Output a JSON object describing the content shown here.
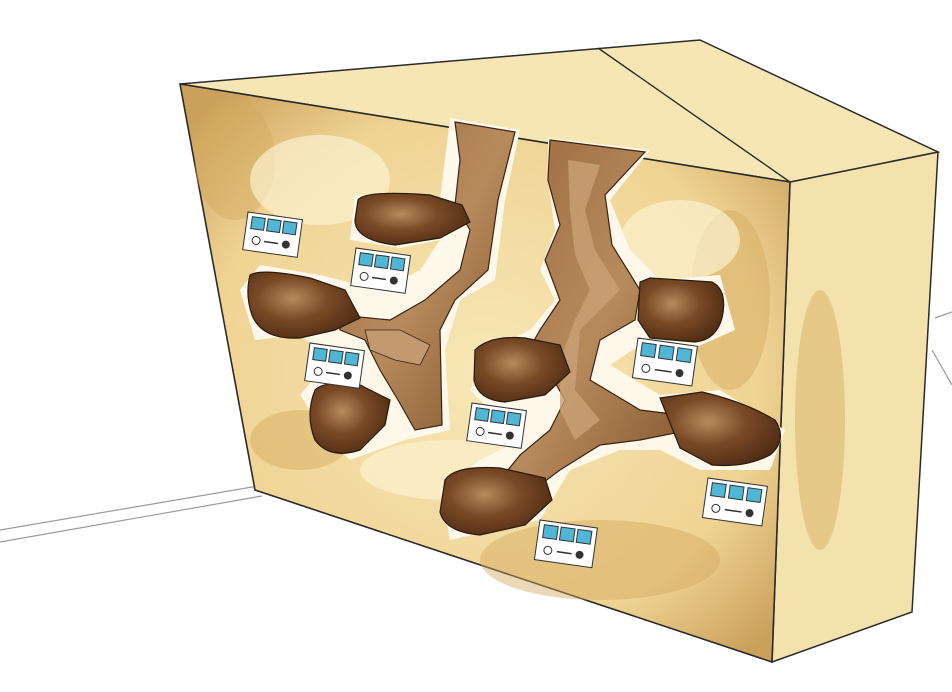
{
  "illustration": {
    "subject": "",
    "colors": {
      "paper": "#ffffff",
      "front_face": "#f3dca0",
      "front_stain": "#d9b56a",
      "top_face": "#f7e8b8",
      "side_face": "#f5e4b0",
      "tunnel_light": "#a7764a",
      "tunnel_mid": "#8a5a34",
      "chamber_dark": "#5a3218",
      "chamber_highlight": "#b98a5e",
      "outline": "#2a2a2a",
      "panel_screen": "#4fb6d6",
      "panel_body": "#ffffff"
    },
    "control_panels": [
      {
        "screens": 3,
        "icons": [
          "gear-icon",
          "dial-icon"
        ]
      },
      {
        "screens": 3,
        "icons": [
          "gear-icon",
          "dial-icon"
        ]
      },
      {
        "screens": 3,
        "icons": [
          "gear-icon",
          "dial-icon"
        ]
      },
      {
        "screens": 3,
        "icons": [
          "gear-icon",
          "dial-icon"
        ]
      },
      {
        "screens": 3,
        "icons": [
          "gear-icon",
          "dial-icon"
        ]
      },
      {
        "screens": 3,
        "icons": [
          "gear-icon",
          "dial-icon"
        ]
      },
      {
        "screens": 3,
        "icons": [
          "gear-icon",
          "dial-icon"
        ]
      }
    ]
  }
}
